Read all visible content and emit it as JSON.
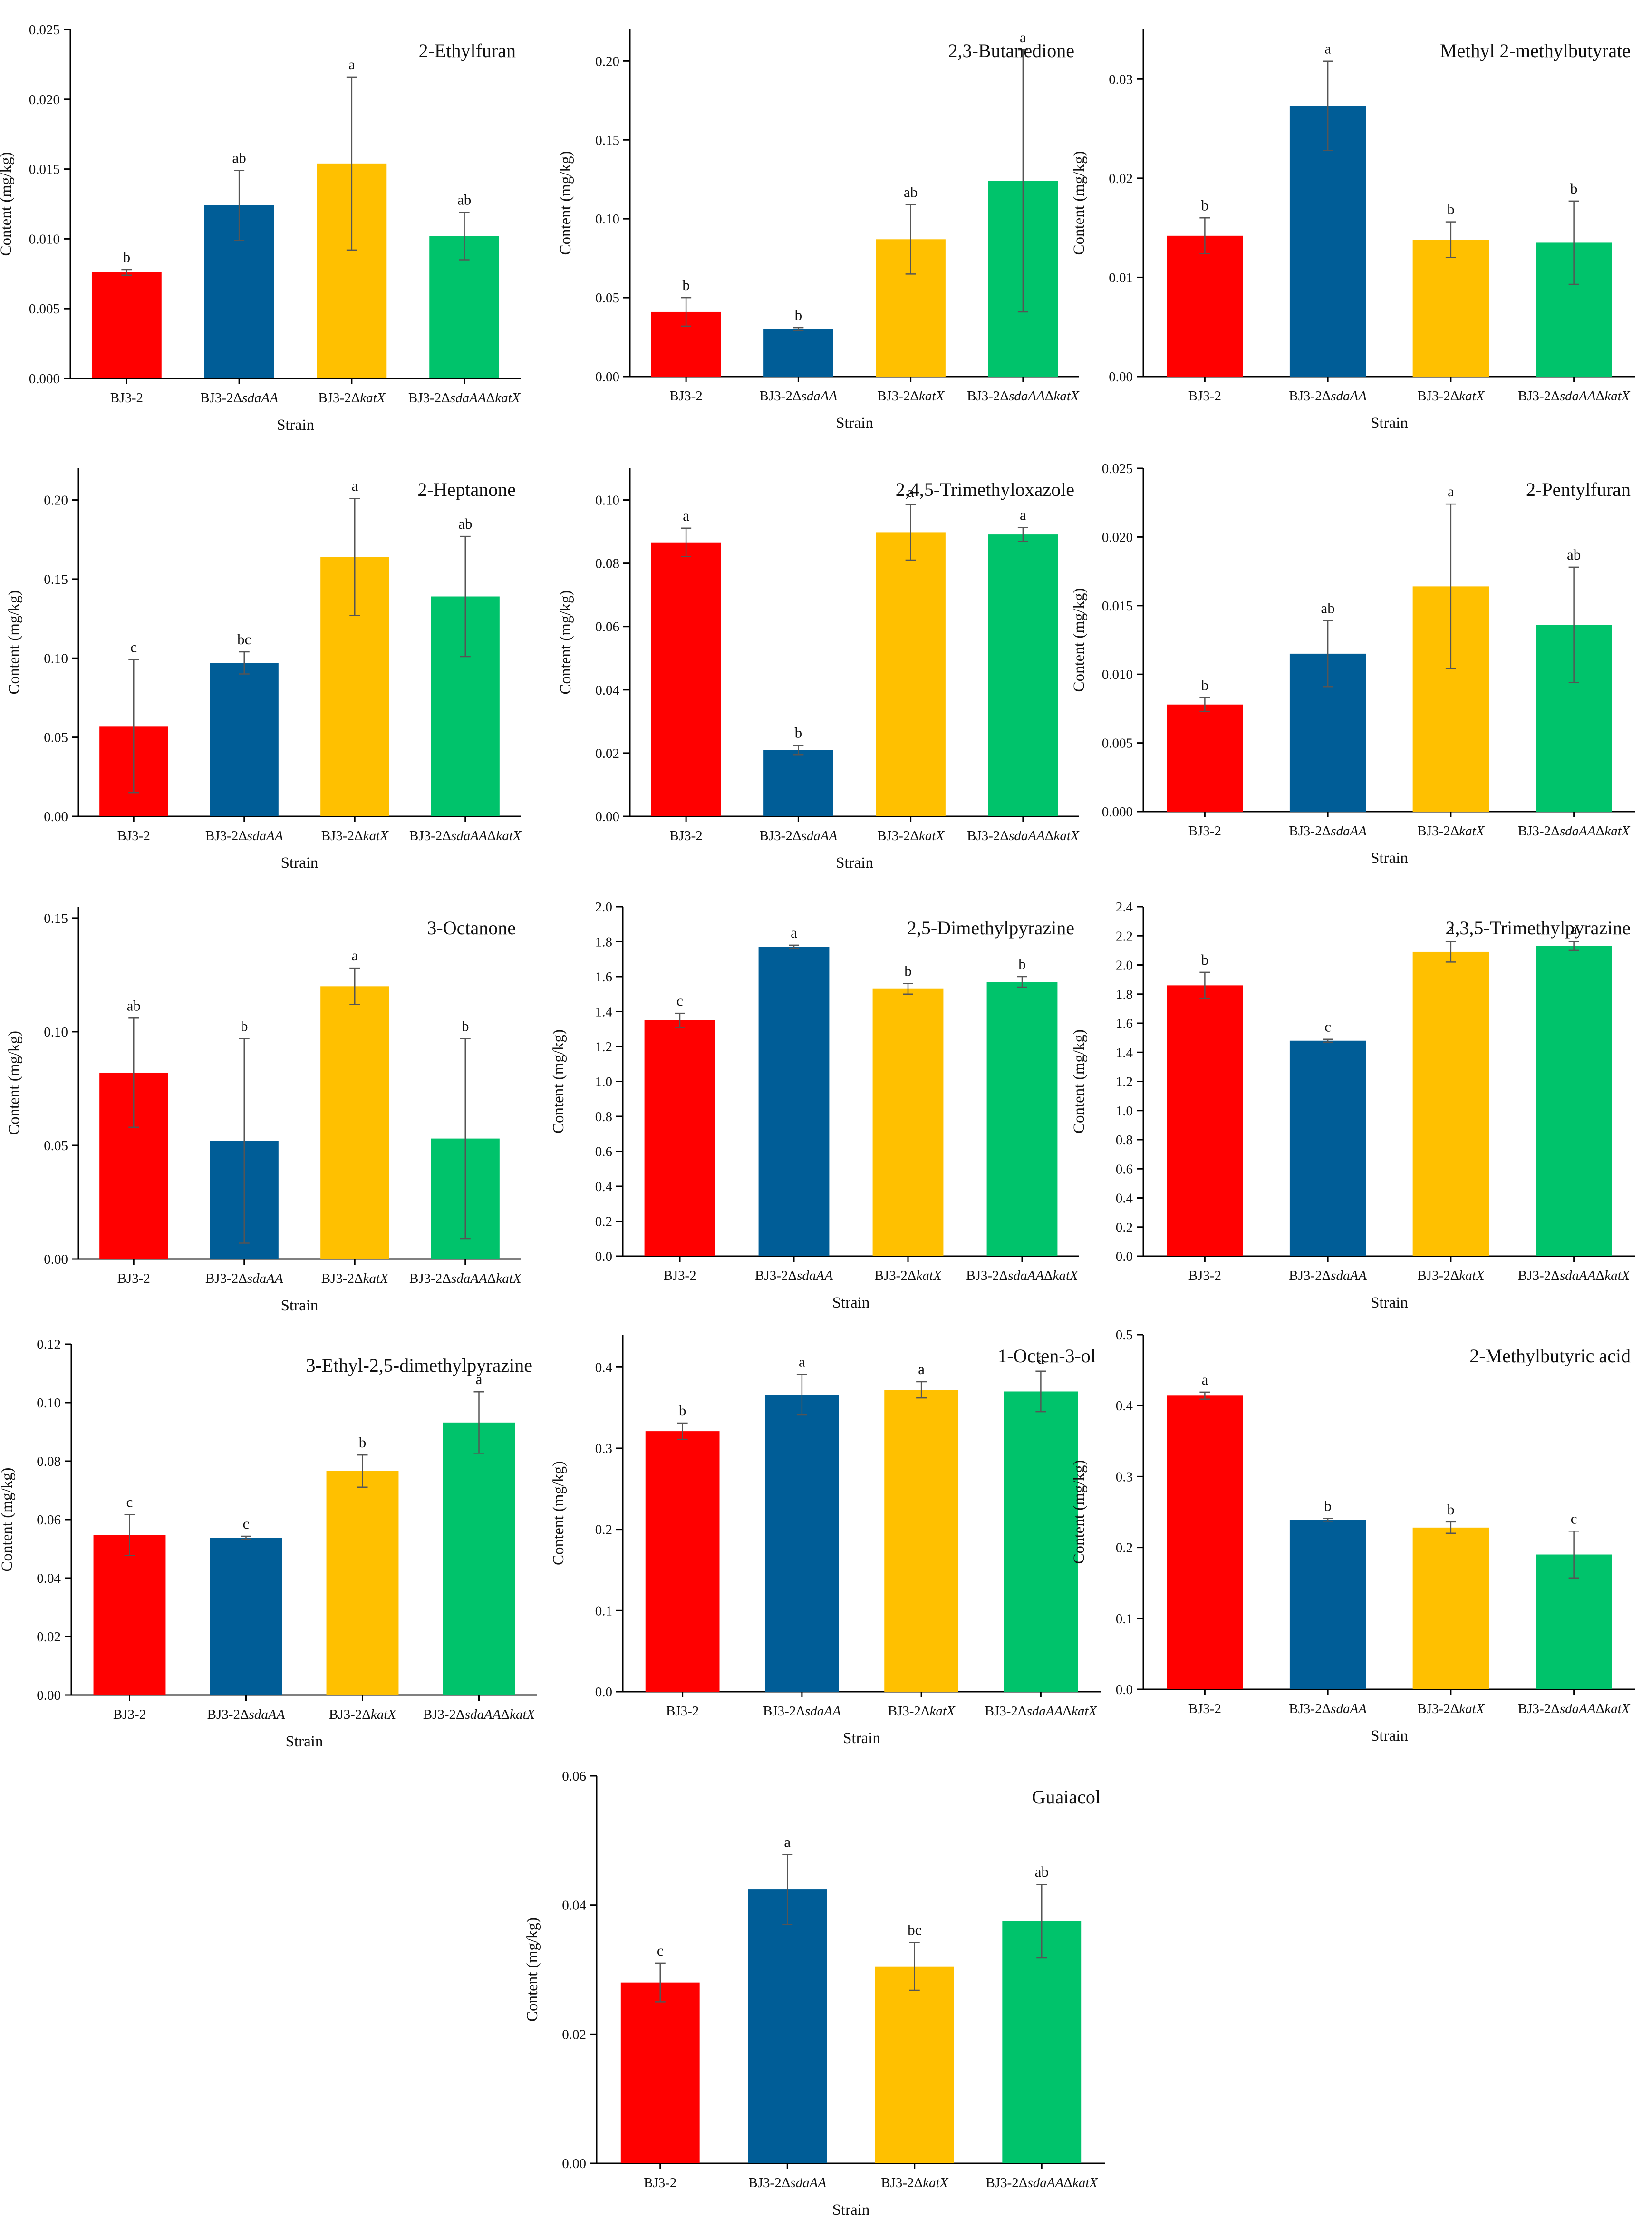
{
  "colors": {
    "BJ3-2": "#ff0000",
    "BJ3-2ΔsdaAA": "#005d97",
    "BJ3-2ΔkatX": "#ffc000",
    "BJ3-2ΔsdaAAΔkatX": "#00c36b"
  },
  "chart_data": [
    {
      "type": "bar",
      "title": "2-Ethylfuran",
      "xlabel": "Strain",
      "ylabel": "Content (mg/kg)",
      "ylim": [
        0,
        0.025
      ],
      "yticks": [
        "0.000",
        "0.005",
        "0.010",
        "0.015",
        "0.020",
        "0.025"
      ],
      "categories": [
        "BJ3-2",
        "BJ3-2Δ",
        "BJ3-2Δ",
        "BJ3-2ΔΔ"
      ],
      "categories_italic": [
        "",
        "sdaAA",
        "katX",
        [
          "sdaAA",
          "katX"
        ]
      ],
      "values": [
        0.0076,
        0.0124,
        0.0154,
        0.0102
      ],
      "errors": [
        0.0002,
        0.0025,
        0.0062,
        0.0017
      ],
      "letters": [
        "b",
        "ab",
        "a",
        "ab"
      ]
    },
    {
      "type": "bar",
      "title": "2,3-Butanedione",
      "xlabel": "Strain",
      "ylabel": "Content (mg/kg)",
      "ylim": [
        0,
        0.22
      ],
      "yticks": [
        "0.00",
        "0.05",
        "0.10",
        "0.15",
        "0.20"
      ],
      "categories": [
        "BJ3-2",
        "BJ3-2Δ",
        "BJ3-2Δ",
        "BJ3-2ΔΔ"
      ],
      "categories_italic": [
        "",
        "sdaAA",
        "katX",
        [
          "sdaAA",
          "katX"
        ]
      ],
      "values": [
        0.041,
        0.03,
        0.087,
        0.124
      ],
      "errors": [
        0.009,
        0.001,
        0.022,
        0.083
      ],
      "letters": [
        "b",
        "b",
        "ab",
        "a"
      ]
    },
    {
      "type": "bar",
      "title": "Methyl 2-methylbutyrate",
      "xlabel": "Strain",
      "ylabel": "Content (mg/kg)",
      "ylim": [
        0,
        0.035
      ],
      "yticks": [
        "0.00",
        "0.01",
        "0.02",
        "0.03"
      ],
      "categories": [
        "BJ3-2",
        "BJ3-2Δ",
        "BJ3-2Δ",
        "BJ3-2ΔΔ"
      ],
      "categories_italic": [
        "",
        "sdaAA",
        "katX",
        [
          "sdaAA",
          "katX"
        ]
      ],
      "values": [
        0.0142,
        0.0273,
        0.0138,
        0.0135
      ],
      "errors": [
        0.0018,
        0.0045,
        0.0018,
        0.0042
      ],
      "letters": [
        "b",
        "a",
        "b",
        "b"
      ]
    },
    {
      "type": "bar",
      "title": "2-Heptanone",
      "xlabel": "Strain",
      "ylabel": "Content (mg/kg)",
      "ylim": [
        0,
        0.22
      ],
      "yticks": [
        "0.00",
        "0.05",
        "0.10",
        "0.15",
        "0.20"
      ],
      "categories": [
        "BJ3-2",
        "BJ3-2Δ",
        "BJ3-2Δ",
        "BJ3-2ΔΔ"
      ],
      "categories_italic": [
        "",
        "sdaAA",
        "katX",
        [
          "sdaAA",
          "katX"
        ]
      ],
      "values": [
        0.057,
        0.097,
        0.164,
        0.139
      ],
      "errors": [
        0.042,
        0.007,
        0.037,
        0.038
      ],
      "letters": [
        "c",
        "bc",
        "a",
        "ab"
      ]
    },
    {
      "type": "bar",
      "title": "2,4,5-Trimethyloxazole",
      "xlabel": "Strain",
      "ylabel": "Content (mg/kg)",
      "ylim": [
        0,
        0.11
      ],
      "yticks": [
        "0.00",
        "0.02",
        "0.04",
        "0.06",
        "0.08",
        "0.10"
      ],
      "categories": [
        "BJ3-2",
        "BJ3-2Δ",
        "BJ3-2Δ",
        "BJ3-2ΔΔ"
      ],
      "categories_italic": [
        "",
        "sdaAA",
        "katX",
        [
          "sdaAA",
          "katX"
        ]
      ],
      "values": [
        0.0866,
        0.021,
        0.0898,
        0.0891
      ],
      "errors": [
        0.0045,
        0.0015,
        0.0088,
        0.0022
      ],
      "letters": [
        "a",
        "b",
        "a",
        "a"
      ]
    },
    {
      "type": "bar",
      "title": "2-Pentylfuran",
      "xlabel": "Strain",
      "ylabel": "Content (mg/kg)",
      "ylim": [
        0,
        0.025
      ],
      "yticks": [
        "0.000",
        "0.005",
        "0.010",
        "0.015",
        "0.020",
        "0.025"
      ],
      "categories": [
        "BJ3-2",
        "BJ3-2Δ",
        "BJ3-2Δ",
        "BJ3-2ΔΔ"
      ],
      "categories_italic": [
        "",
        "sdaAA",
        "katX",
        [
          "sdaAA",
          "katX"
        ]
      ],
      "values": [
        0.0078,
        0.0115,
        0.0164,
        0.0136
      ],
      "errors": [
        0.0005,
        0.0024,
        0.006,
        0.0042
      ],
      "letters": [
        "b",
        "ab",
        "a",
        "ab"
      ]
    },
    {
      "type": "bar",
      "title": "3-Octanone",
      "xlabel": "Strain",
      "ylabel": "Content (mg/kg)",
      "ylim": [
        0,
        0.155
      ],
      "yticks": [
        "0.00",
        "0.05",
        "0.10",
        "0.15"
      ],
      "categories": [
        "BJ3-2",
        "BJ3-2Δ",
        "BJ3-2Δ",
        "BJ3-2ΔΔ"
      ],
      "categories_italic": [
        "",
        "sdaAA",
        "katX",
        [
          "sdaAA",
          "katX"
        ]
      ],
      "values": [
        0.082,
        0.052,
        0.12,
        0.053
      ],
      "errors": [
        0.024,
        0.045,
        0.008,
        0.044
      ],
      "letters": [
        "ab",
        "b",
        "a",
        "b"
      ]
    },
    {
      "type": "bar",
      "title": "2,5-Dimethylpyrazine",
      "xlabel": "Strain",
      "ylabel": "Content (mg/kg)",
      "ylim": [
        0,
        2.0
      ],
      "yticks": [
        "0.0",
        "0.2",
        "0.4",
        "0.6",
        "0.8",
        "1.0",
        "1.2",
        "1.4",
        "1.6",
        "1.8",
        "2.0"
      ],
      "categories": [
        "BJ3-2",
        "BJ3-2Δ",
        "BJ3-2Δ",
        "BJ3-2ΔΔ"
      ],
      "categories_italic": [
        "",
        "sdaAA",
        "katX",
        [
          "sdaAA",
          "katX"
        ]
      ],
      "values": [
        1.35,
        1.77,
        1.53,
        1.57
      ],
      "errors": [
        0.04,
        0.01,
        0.03,
        0.03
      ],
      "letters": [
        "c",
        "a",
        "b",
        "b"
      ]
    },
    {
      "type": "bar",
      "title": "2,3,5-Trimethylpyrazine",
      "xlabel": "Strain",
      "ylabel": "Content (mg/kg)",
      "ylim": [
        0,
        2.4
      ],
      "yticks": [
        "0.0",
        "0.2",
        "0.4",
        "0.6",
        "0.8",
        "1.0",
        "1.2",
        "1.4",
        "1.6",
        "1.8",
        "2.0",
        "2.2",
        "2.4"
      ],
      "categories": [
        "BJ3-2",
        "BJ3-2Δ",
        "BJ3-2Δ",
        "BJ3-2ΔΔ"
      ],
      "categories_italic": [
        "",
        "sdaAA",
        "katX",
        [
          "sdaAA",
          "katX"
        ]
      ],
      "values": [
        1.86,
        1.48,
        2.09,
        2.13
      ],
      "errors": [
        0.09,
        0.01,
        0.07,
        0.03
      ],
      "letters": [
        "b",
        "c",
        "a",
        "a"
      ]
    },
    {
      "type": "bar",
      "title": "3-Ethyl-2,5-dimethylpyrazine",
      "xlabel": "Strain",
      "ylabel": "Content (mg/kg)",
      "ylim": [
        0,
        0.12
      ],
      "yticks": [
        "0.00",
        "0.02",
        "0.04",
        "0.06",
        "0.08",
        "0.10",
        "0.12"
      ],
      "categories": [
        "BJ3-2",
        "BJ3-2Δ",
        "BJ3-2Δ",
        "BJ3-2ΔΔ"
      ],
      "categories_italic": [
        "",
        "sdaAA",
        "katX",
        [
          "sdaAA",
          "katX"
        ]
      ],
      "values": [
        0.0547,
        0.0538,
        0.0766,
        0.0932
      ],
      "errors": [
        0.007,
        0.0005,
        0.0055,
        0.0105
      ],
      "letters": [
        "c",
        "c",
        "b",
        "a"
      ]
    },
    {
      "type": "bar",
      "title": "1-Octen-3-ol",
      "xlabel": "Strain",
      "ylabel": "Content (mg/kg)",
      "ylim": [
        0,
        0.44
      ],
      "yticks": [
        "0.0",
        "0.1",
        "0.2",
        "0.3",
        "0.4"
      ],
      "categories": [
        "BJ3-2",
        "BJ3-2Δ",
        "BJ3-2Δ",
        "BJ3-2ΔΔ"
      ],
      "categories_italic": [
        "",
        "sdaAA",
        "katX",
        [
          "sdaAA",
          "katX"
        ]
      ],
      "values": [
        0.321,
        0.366,
        0.372,
        0.37
      ],
      "errors": [
        0.01,
        0.025,
        0.01,
        0.025
      ],
      "letters": [
        "b",
        "a",
        "a",
        "a"
      ]
    },
    {
      "type": "bar",
      "title": "2-Methylbutyric acid",
      "xlabel": "Strain",
      "ylabel": "Content (mg/kg)",
      "ylim": [
        0,
        0.5
      ],
      "yticks": [
        "0.0",
        "0.1",
        "0.2",
        "0.3",
        "0.4",
        "0.5"
      ],
      "categories": [
        "BJ3-2",
        "BJ3-2Δ",
        "BJ3-2Δ",
        "BJ3-2ΔΔ"
      ],
      "categories_italic": [
        "",
        "sdaAA",
        "katX",
        [
          "sdaAA",
          "katX"
        ]
      ],
      "values": [
        0.414,
        0.239,
        0.228,
        0.19
      ],
      "errors": [
        0.005,
        0.002,
        0.008,
        0.033
      ],
      "letters": [
        "a",
        "b",
        "b",
        "c"
      ]
    },
    {
      "type": "bar",
      "title": "Guaiacol",
      "xlabel": "Strain",
      "ylabel": "Content (mg/kg)",
      "ylim": [
        0,
        0.06
      ],
      "yticks": [
        "0.00",
        "0.02",
        "0.04",
        "0.06"
      ],
      "categories": [
        "BJ3-2",
        "BJ3-2Δ",
        "BJ3-2Δ",
        "BJ3-2ΔΔ"
      ],
      "categories_italic": [
        "",
        "sdaAA",
        "katX",
        [
          "sdaAA",
          "katX"
        ]
      ],
      "values": [
        0.028,
        0.0424,
        0.0305,
        0.0375
      ],
      "errors": [
        0.003,
        0.0054,
        0.0037,
        0.0057
      ],
      "letters": [
        "c",
        "a",
        "bc",
        "ab"
      ]
    }
  ]
}
